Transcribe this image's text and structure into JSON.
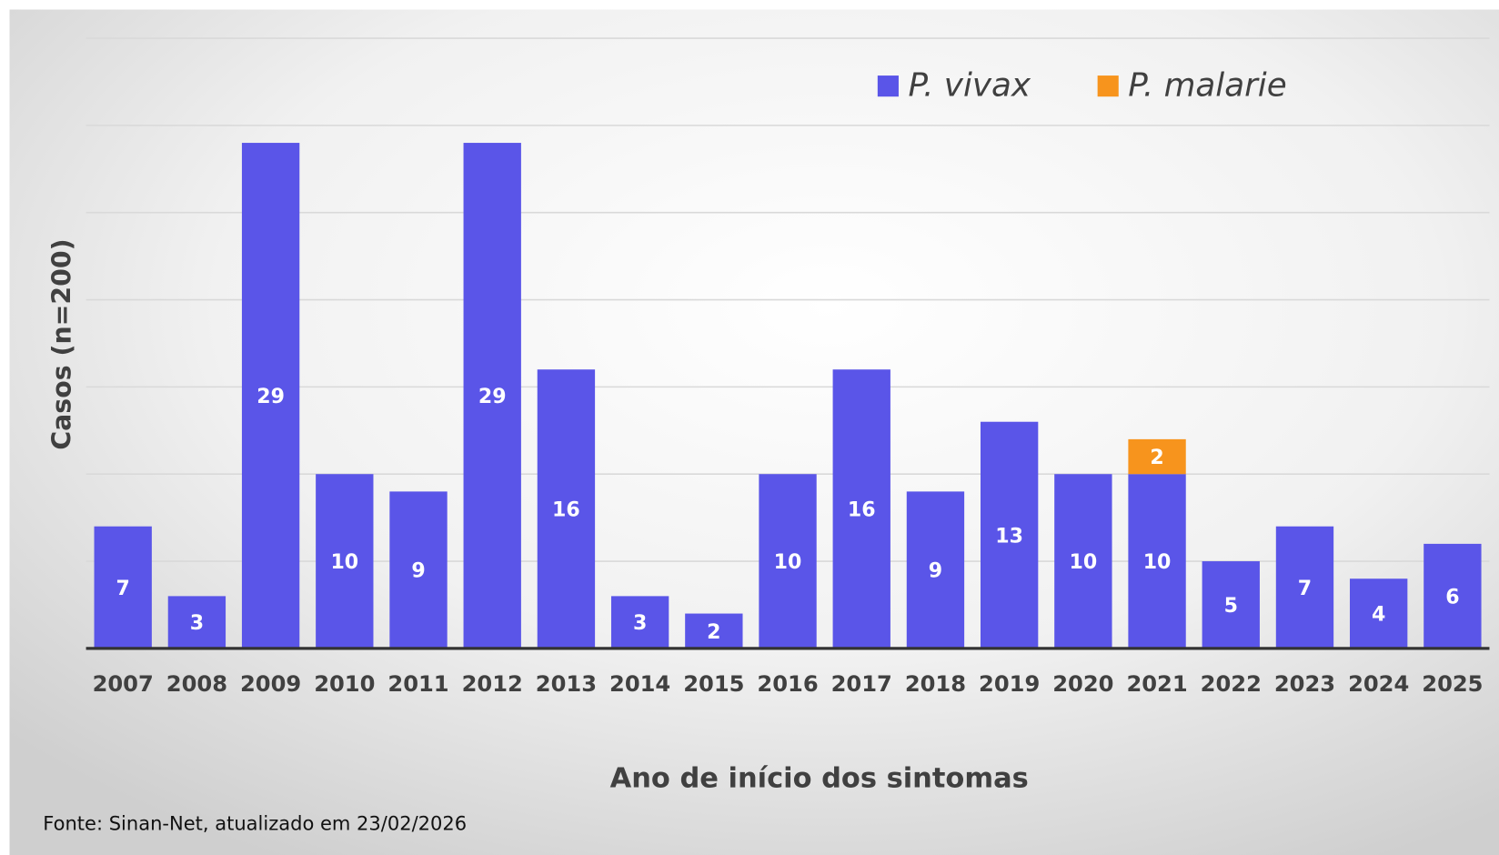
{
  "chart_data": {
    "type": "stacked-bar",
    "x_label": "Ano de início dos sintomas",
    "y_label": "Casos (n=200)",
    "source": "Fonte: Sinan-Net, atualizado em 23/02/2026",
    "categories": [
      "2007",
      "2008",
      "2009",
      "2010",
      "2011",
      "2012",
      "2013",
      "2014",
      "2015",
      "2016",
      "2017",
      "2018",
      "2019",
      "2020",
      "2021",
      "2022",
      "2023",
      "2024",
      "2025"
    ],
    "series": [
      {
        "name": "P. vivax",
        "color": "#5a55e8",
        "values": [
          7,
          3,
          29,
          10,
          9,
          29,
          16,
          3,
          2,
          10,
          16,
          9,
          13,
          10,
          10,
          5,
          7,
          4,
          6
        ]
      },
      {
        "name": "P. malarie",
        "color": "#f7941d",
        "values": [
          null,
          null,
          null,
          null,
          null,
          null,
          null,
          null,
          null,
          null,
          null,
          null,
          null,
          null,
          2,
          null,
          null,
          null,
          null
        ]
      }
    ],
    "ylim": [
      0,
      35
    ],
    "yticks": [
      0,
      5,
      10,
      15,
      20,
      25,
      30,
      35
    ],
    "grid": true,
    "legend": "top-right"
  }
}
